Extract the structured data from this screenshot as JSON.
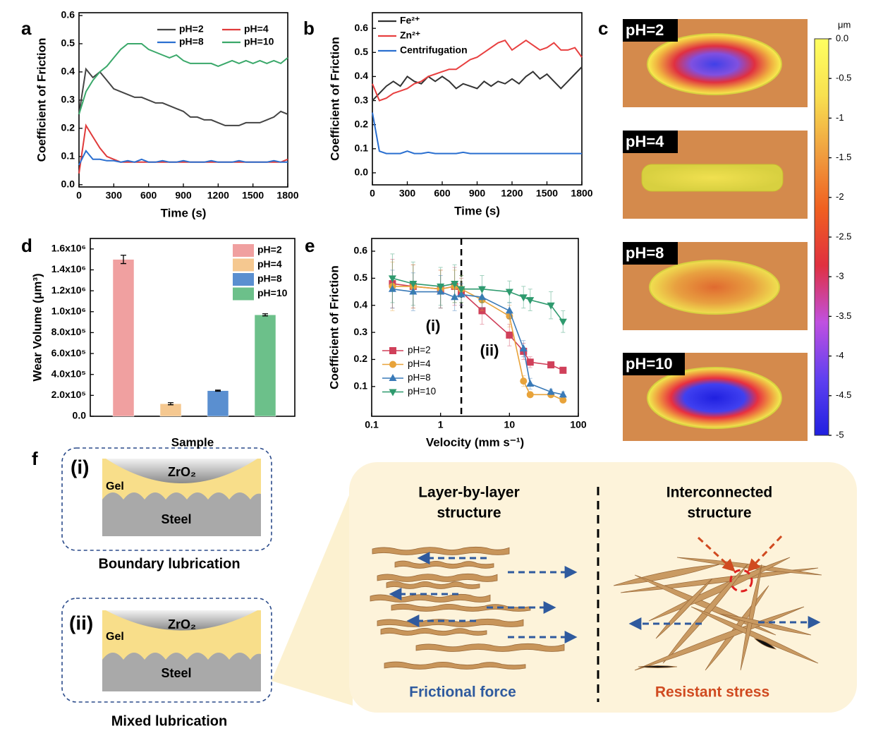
{
  "chart_data": [
    {
      "type": "line",
      "label": "a",
      "xlabel": "Time (s)",
      "ylabel": "Coefficient  of Friction",
      "x": [
        0,
        60,
        120,
        180,
        240,
        300,
        360,
        420,
        480,
        540,
        600,
        660,
        720,
        780,
        840,
        900,
        960,
        1020,
        1080,
        1140,
        1200,
        1260,
        1320,
        1380,
        1440,
        1500,
        1560,
        1620,
        1680,
        1740,
        1800
      ],
      "series": [
        {
          "name": "pH=2",
          "color": "#444444",
          "values": [
            0.25,
            0.41,
            0.38,
            0.4,
            0.37,
            0.34,
            0.33,
            0.32,
            0.31,
            0.31,
            0.3,
            0.29,
            0.29,
            0.28,
            0.27,
            0.26,
            0.24,
            0.24,
            0.23,
            0.23,
            0.22,
            0.21,
            0.21,
            0.21,
            0.22,
            0.22,
            0.22,
            0.23,
            0.24,
            0.26,
            0.25
          ]
        },
        {
          "name": "pH=4",
          "color": "#e03a3a",
          "values": [
            0.04,
            0.21,
            0.17,
            0.13,
            0.1,
            0.09,
            0.08,
            0.08,
            0.08,
            0.08,
            0.08,
            0.08,
            0.08,
            0.08,
            0.08,
            0.08,
            0.08,
            0.08,
            0.08,
            0.08,
            0.08,
            0.08,
            0.08,
            0.08,
            0.08,
            0.08,
            0.08,
            0.08,
            0.08,
            0.08,
            0.09
          ]
        },
        {
          "name": "pH=8",
          "color": "#2a6fd0",
          "values": [
            0.07,
            0.12,
            0.09,
            0.09,
            0.085,
            0.085,
            0.08,
            0.085,
            0.08,
            0.09,
            0.08,
            0.08,
            0.085,
            0.08,
            0.08,
            0.085,
            0.08,
            0.08,
            0.08,
            0.085,
            0.08,
            0.08,
            0.08,
            0.085,
            0.08,
            0.08,
            0.08,
            0.08,
            0.085,
            0.08,
            0.08
          ]
        },
        {
          "name": "pH=10",
          "color": "#3aa86a",
          "values": [
            0.25,
            0.33,
            0.37,
            0.4,
            0.42,
            0.45,
            0.48,
            0.5,
            0.5,
            0.5,
            0.48,
            0.47,
            0.46,
            0.45,
            0.46,
            0.44,
            0.43,
            0.43,
            0.43,
            0.43,
            0.42,
            0.43,
            0.44,
            0.43,
            0.44,
            0.43,
            0.44,
            0.43,
            0.44,
            0.43,
            0.45
          ]
        }
      ],
      "xlim": [
        0,
        1800
      ],
      "xticks": [
        0,
        300,
        600,
        900,
        1200,
        1500,
        1800
      ],
      "ylim": [
        -0.008,
        0.61
      ],
      "yticks": [
        {
          "value": 0,
          "label": "0.0"
        },
        0.1,
        0.2,
        0.3,
        0.4,
        0.5,
        0.6
      ],
      "legend": "upper right",
      "legend_columns": 2
    },
    {
      "type": "line",
      "label": "b",
      "xlabel": "Time (s)",
      "ylabel": "Coefficient  of Friction",
      "x": [
        0,
        60,
        120,
        180,
        240,
        300,
        360,
        420,
        480,
        540,
        600,
        660,
        720,
        780,
        840,
        900,
        960,
        1020,
        1080,
        1140,
        1200,
        1260,
        1320,
        1380,
        1440,
        1500,
        1560,
        1620,
        1680,
        1740,
        1800
      ],
      "series": [
        {
          "name": "Fe²⁺",
          "color": "#333333",
          "values": [
            0.3,
            0.33,
            0.36,
            0.38,
            0.36,
            0.4,
            0.38,
            0.37,
            0.4,
            0.38,
            0.4,
            0.38,
            0.35,
            0.37,
            0.36,
            0.35,
            0.38,
            0.36,
            0.38,
            0.37,
            0.39,
            0.37,
            0.4,
            0.42,
            0.39,
            0.41,
            0.38,
            0.35,
            0.38,
            0.41,
            0.44
          ]
        },
        {
          "name": "Zn²⁺",
          "color": "#e84040",
          "values": [
            0.37,
            0.3,
            0.31,
            0.33,
            0.34,
            0.35,
            0.37,
            0.38,
            0.4,
            0.41,
            0.42,
            0.43,
            0.43,
            0.45,
            0.47,
            0.48,
            0.5,
            0.52,
            0.54,
            0.55,
            0.51,
            0.53,
            0.55,
            0.53,
            0.51,
            0.52,
            0.54,
            0.51,
            0.51,
            0.52,
            0.48
          ]
        },
        {
          "name": "Centrifugation",
          "color": "#2a6fd0",
          "values": [
            0.25,
            0.09,
            0.08,
            0.08,
            0.08,
            0.09,
            0.08,
            0.08,
            0.085,
            0.08,
            0.08,
            0.08,
            0.08,
            0.085,
            0.08,
            0.08,
            0.08,
            0.08,
            0.08,
            0.08,
            0.08,
            0.08,
            0.08,
            0.08,
            0.08,
            0.08,
            0.08,
            0.08,
            0.08,
            0.08,
            0.08
          ]
        }
      ],
      "xlim": [
        0,
        1800
      ],
      "xticks": [
        0,
        300,
        600,
        900,
        1200,
        1500,
        1800
      ],
      "ylim": [
        -0.05,
        0.665
      ],
      "yticks": [
        {
          "value": 0,
          "label": "0.0"
        },
        0.1,
        0.2,
        0.3,
        0.4,
        0.5,
        0.6
      ],
      "legend": "upper left",
      "legend_columns": 1
    },
    {
      "type": "image-panel",
      "label": "c",
      "images": [
        "pH=2",
        "pH=4",
        "pH=8",
        "pH=10"
      ],
      "colorbar": {
        "unit": "μm",
        "clim": [
          -5,
          0
        ],
        "ticks": [
          {
            "value": 0,
            "label": "0.0"
          },
          -0.5,
          -1,
          -1.5,
          -2,
          -2.5,
          -3,
          -3.5,
          -4,
          -4.5,
          -5
        ],
        "colormap": [
          "#2020e0",
          "#6040f0",
          "#c050e0",
          "#e03040",
          "#f06020",
          "#f0a040",
          "#f8e050",
          "#ffff60"
        ]
      }
    },
    {
      "type": "bar",
      "label": "d",
      "xlabel": "Sample",
      "ylabel": "Wear Volume (μm³)",
      "categories": [
        "pH=2",
        "pH=4",
        "pH=8",
        "pH=10"
      ],
      "values": [
        1500000,
        120000,
        245000,
        970000
      ],
      "errors": [
        40000,
        10000,
        5000,
        10000
      ],
      "colors": [
        "#f0a0a0",
        "#f5c890",
        "#5a8fd0",
        "#6cc08a"
      ],
      "ylim": [
        0,
        1700000
      ],
      "yticks": [
        {
          "value": 0,
          "label": "0.0"
        },
        {
          "value": 200000,
          "label": "2.0x10⁵"
        },
        {
          "value": 400000,
          "label": "4.0x10⁵"
        },
        {
          "value": 600000,
          "label": "6.0x10⁵"
        },
        {
          "value": 800000,
          "label": "8.0x10⁵"
        },
        {
          "value": 1000000,
          "label": "1.0x10⁶"
        },
        {
          "value": 1200000,
          "label": "1.2x10⁶"
        },
        {
          "value": 1400000,
          "label": "1.4x10⁶"
        },
        {
          "value": 1600000,
          "label": "1.6x10⁶"
        }
      ],
      "legend": "upper right"
    },
    {
      "type": "errorline",
      "label": "e",
      "xlabel": "Velocity (mm s⁻¹)",
      "ylabel": "Coefficient of Friction",
      "x": [
        0.2,
        0.4,
        1,
        1.6,
        2,
        4,
        10,
        16,
        20,
        40,
        60
      ],
      "series": [
        {
          "name": "pH=2",
          "color": "#d0405a",
          "marker": "square",
          "values": [
            0.48,
            0.47,
            0.46,
            0.47,
            0.45,
            0.38,
            0.29,
            0.23,
            0.19,
            0.18,
            0.16
          ],
          "errors": [
            0.09,
            0.08,
            0.07,
            0.07,
            0.05,
            0.05,
            0.04,
            0.03,
            0.02,
            0.01,
            0.01
          ]
        },
        {
          "name": "pH=4",
          "color": "#e8a33a",
          "marker": "circle",
          "values": [
            0.47,
            0.47,
            0.46,
            0.47,
            0.46,
            0.42,
            0.36,
            0.12,
            0.07,
            0.07,
            0.05
          ],
          "errors": [
            0.09,
            0.08,
            0.07,
            0.06,
            0.05,
            0.04,
            0.04,
            0.02,
            0.01,
            0.01,
            0.01
          ]
        },
        {
          "name": "pH=8",
          "color": "#3a7ab8",
          "marker": "triangle-up",
          "values": [
            0.46,
            0.45,
            0.45,
            0.43,
            0.44,
            0.43,
            0.38,
            0.24,
            0.11,
            0.08,
            0.07
          ],
          "errors": [
            0.07,
            0.07,
            0.06,
            0.05,
            0.04,
            0.04,
            0.03,
            0.03,
            0.02,
            0.01,
            0.01
          ]
        },
        {
          "name": "pH=10",
          "color": "#2e9a6e",
          "marker": "triangle-down",
          "values": [
            0.5,
            0.48,
            0.47,
            0.48,
            0.46,
            0.46,
            0.45,
            0.43,
            0.42,
            0.4,
            0.34
          ],
          "errors": [
            0.09,
            0.08,
            0.07,
            0.07,
            0.05,
            0.05,
            0.04,
            0.04,
            0.04,
            0.05,
            0.04
          ]
        }
      ],
      "xscale": "log",
      "xlim": [
        0.1,
        100
      ],
      "xticks": [
        0.1,
        1,
        10,
        100
      ],
      "ylim": [
        -0.01,
        0.647
      ],
      "yticks": [
        0.1,
        0.2,
        0.3,
        0.4,
        0.5,
        0.6
      ],
      "divider_x": 2,
      "annotations": [
        "(i)",
        "(ii)"
      ],
      "legend": "lower left"
    }
  ],
  "diagram": {
    "label": "f",
    "boxes": [
      {
        "label": "(i)",
        "ball": "ZrO₂",
        "gel": "Gel",
        "base": "Steel",
        "caption": "Boundary lubrication"
      },
      {
        "label": "(ii)",
        "ball": "ZrO₂",
        "gel": "Gel",
        "base": "Steel",
        "caption": "Mixed lubrication"
      }
    ],
    "structures": [
      {
        "title": [
          "Layer-by-layer",
          "structure"
        ],
        "caption": "Frictional force"
      },
      {
        "title": [
          "Interconnected",
          "structure"
        ],
        "caption": "Resistant stress"
      }
    ]
  }
}
